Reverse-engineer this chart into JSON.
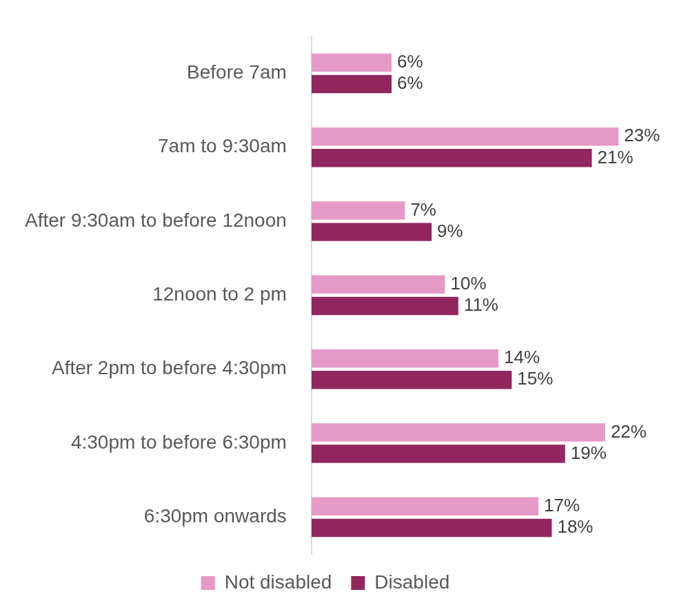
{
  "chart_data": {
    "type": "bar",
    "orientation": "horizontal",
    "categories": [
      "Before 7am",
      "7am to 9:30am",
      "After 9:30am to before 12noon",
      "12noon to 2 pm",
      "After 2pm to before 4:30pm",
      "4:30pm to before 6:30pm",
      "6:30pm onwards"
    ],
    "series": [
      {
        "name": "Not disabled",
        "color": "#e59ac6",
        "values": [
          6,
          23,
          7,
          10,
          14,
          22,
          17
        ],
        "value_labels": [
          "6%",
          "23%",
          "7%",
          "10%",
          "14%",
          "22%",
          "17%"
        ]
      },
      {
        "name": "Disabled",
        "color": "#92275f",
        "values": [
          6,
          21,
          9,
          11,
          15,
          19,
          18
        ],
        "value_labels": [
          "6%",
          "21%",
          "9%",
          "11%",
          "15%",
          "19%",
          "18%"
        ]
      }
    ],
    "tick_labels": "y",
    "legend": "bottom"
  }
}
